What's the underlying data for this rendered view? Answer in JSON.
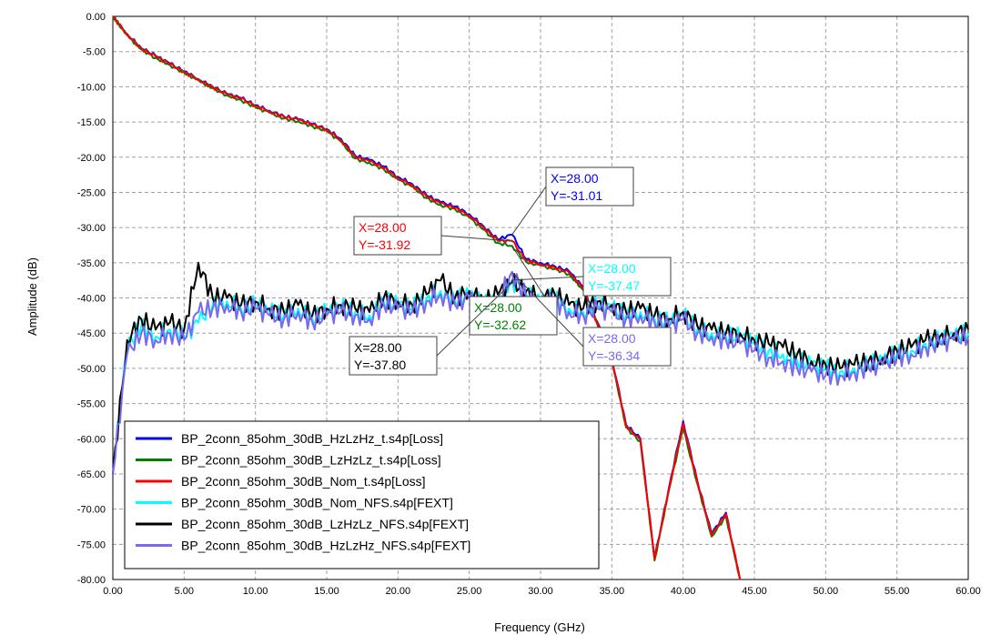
{
  "chart_data": {
    "type": "line",
    "title": "",
    "xlabel": "Frequency (GHz)",
    "ylabel": "Amplitude (dB)",
    "xlim": [
      0,
      60
    ],
    "ylim": [
      -80,
      0
    ],
    "x_ticks": [
      "0.00",
      "5.00",
      "10.00",
      "15.00",
      "20.00",
      "25.00",
      "30.00",
      "35.00",
      "40.00",
      "45.00",
      "50.00",
      "55.00",
      "60.00"
    ],
    "y_ticks": [
      "0.00",
      "-5.00",
      "-10.00",
      "-15.00",
      "-20.00",
      "-25.00",
      "-30.00",
      "-35.00",
      "-40.00",
      "-45.00",
      "-50.00",
      "-55.00",
      "-60.00",
      "-65.00",
      "-70.00",
      "-75.00",
      "-80.00"
    ],
    "grid": true,
    "legend_position": "bottom-left",
    "series": [
      {
        "name": "BP_2conn_85ohm_30dB_HzLzHz_t.s4p[Loss]",
        "color": "#0000ff",
        "x": [
          0,
          1,
          2,
          3,
          4,
          5,
          6,
          7,
          8,
          9,
          10,
          11,
          12,
          13,
          14,
          15,
          16,
          17,
          18,
          19,
          20,
          21,
          22,
          23,
          24,
          25,
          26,
          27,
          28,
          29,
          30,
          31,
          32,
          33,
          34,
          35,
          36,
          37,
          38,
          39,
          40,
          41,
          42,
          43,
          44
        ],
        "y": [
          0,
          -2.5,
          -4.5,
          -5.6,
          -6.7,
          -7.8,
          -8.9,
          -10.0,
          -11.0,
          -11.6,
          -12.6,
          -13.4,
          -14.2,
          -14.6,
          -15.3,
          -16.0,
          -17.4,
          -19.8,
          -20.4,
          -21.3,
          -22.8,
          -23.8,
          -25.4,
          -26.4,
          -27.0,
          -28.1,
          -29.8,
          -31.7,
          -31.0,
          -34.5,
          -35.0,
          -35.5,
          -36.2,
          -38.5,
          -43.5,
          -48.5,
          -58.0,
          -60.0,
          -77.0,
          -67.0,
          -57.5,
          -66.0,
          -73.5,
          -70.5,
          -80.0
        ]
      },
      {
        "name": "BP_2conn_85ohm_30dB_LzHzLz_t.s4p[Loss]",
        "color": "#008000",
        "x": [
          0,
          1,
          2,
          3,
          4,
          5,
          6,
          7,
          8,
          9,
          10,
          11,
          12,
          13,
          14,
          15,
          16,
          17,
          18,
          19,
          20,
          21,
          22,
          23,
          24,
          25,
          26,
          27,
          28,
          29,
          30,
          31,
          32,
          33,
          34,
          35,
          36,
          37,
          38,
          39,
          40,
          41,
          42,
          43,
          44
        ],
        "y": [
          0,
          -2.7,
          -4.7,
          -5.9,
          -6.9,
          -8.0,
          -9.1,
          -10.2,
          -11.2,
          -11.9,
          -12.9,
          -13.7,
          -14.5,
          -14.9,
          -15.6,
          -16.3,
          -17.8,
          -20.2,
          -20.8,
          -21.7,
          -23.2,
          -24.2,
          -25.8,
          -26.8,
          -27.4,
          -28.6,
          -30.3,
          -32.2,
          -32.6,
          -34.9,
          -35.4,
          -35.9,
          -36.6,
          -38.9,
          -43.9,
          -48.9,
          -58.4,
          -60.4,
          -77.3,
          -67.4,
          -58.5,
          -66.4,
          -73.9,
          -71.0,
          -80.0
        ]
      },
      {
        "name": "BP_2conn_85ohm_30dB_Nom_t.s4p[Loss]",
        "color": "#ff0000",
        "x": [
          0,
          1,
          2,
          3,
          4,
          5,
          6,
          7,
          8,
          9,
          10,
          11,
          12,
          13,
          14,
          15,
          16,
          17,
          18,
          19,
          20,
          21,
          22,
          23,
          24,
          25,
          26,
          27,
          28,
          29,
          30,
          31,
          32,
          33,
          34,
          35,
          36,
          37,
          38,
          39,
          40,
          41,
          42,
          43,
          44
        ],
        "y": [
          0,
          -2.6,
          -4.6,
          -5.7,
          -6.8,
          -7.9,
          -9.0,
          -10.1,
          -11.1,
          -11.7,
          -12.7,
          -13.5,
          -14.3,
          -14.7,
          -15.4,
          -16.1,
          -17.6,
          -20.0,
          -20.6,
          -21.5,
          -23.0,
          -24.0,
          -25.6,
          -26.6,
          -27.2,
          -28.3,
          -30.0,
          -31.9,
          -31.9,
          -34.7,
          -35.2,
          -35.7,
          -36.4,
          -38.7,
          -43.7,
          -48.7,
          -58.2,
          -60.2,
          -77.1,
          -67.2,
          -57.8,
          -66.2,
          -73.7,
          -70.7,
          -80.0
        ]
      },
      {
        "name": "BP_2conn_85ohm_30dB_Nom_NFS.s4p[FEXT]",
        "color": "#00ffff",
        "x": [
          0,
          1,
          2,
          3,
          4,
          5,
          6,
          7,
          8,
          9,
          10,
          11,
          12,
          13,
          14,
          15,
          16,
          17,
          18,
          19,
          20,
          21,
          22,
          23,
          24,
          25,
          26,
          27,
          28,
          29,
          30,
          31,
          32,
          33,
          34,
          35,
          36,
          37,
          38,
          39,
          40,
          41,
          42,
          43,
          44,
          45,
          46,
          47,
          48,
          49,
          50,
          51,
          52,
          53,
          54,
          55,
          56,
          57,
          58,
          59,
          60
        ],
        "y": [
          -65.0,
          -47.0,
          -44.0,
          -45.5,
          -44.5,
          -45.5,
          -43.5,
          -41.0,
          -40.5,
          -41.5,
          -41.0,
          -42.0,
          -42.5,
          -41.5,
          -43.0,
          -42.0,
          -41.5,
          -42.0,
          -42.5,
          -40.5,
          -41.0,
          -41.5,
          -40.0,
          -39.0,
          -40.5,
          -39.5,
          -41.0,
          -40.0,
          -37.5,
          -39.5,
          -40.5,
          -40.0,
          -41.5,
          -42.0,
          -41.0,
          -41.5,
          -42.5,
          -42.0,
          -43.0,
          -43.5,
          -42.5,
          -44.5,
          -45.0,
          -45.5,
          -45.5,
          -46.5,
          -47.5,
          -48.0,
          -49.0,
          -49.5,
          -50.0,
          -50.5,
          -50.0,
          -49.5,
          -49.0,
          -48.0,
          -47.5,
          -46.5,
          -46.0,
          -45.5,
          -45.0
        ]
      },
      {
        "name": "BP_2conn_85ohm_30dB_LzHzLz_NFS.s4p[FEXT]",
        "color": "#000000",
        "x": [
          0,
          1,
          2,
          3,
          4,
          5,
          6,
          7,
          8,
          9,
          10,
          11,
          12,
          13,
          14,
          15,
          16,
          17,
          18,
          19,
          20,
          21,
          22,
          23,
          24,
          25,
          26,
          27,
          28,
          29,
          30,
          31,
          32,
          33,
          34,
          35,
          36,
          37,
          38,
          39,
          40,
          41,
          42,
          43,
          44,
          45,
          46,
          47,
          48,
          49,
          50,
          51,
          52,
          53,
          54,
          55,
          56,
          57,
          58,
          59,
          60
        ],
        "y": [
          -65.0,
          -46.0,
          -43.0,
          -44.5,
          -43.5,
          -44.5,
          -35.0,
          -40.0,
          -40.0,
          -41.0,
          -40.5,
          -41.5,
          -42.0,
          -41.0,
          -42.5,
          -41.5,
          -41.0,
          -41.5,
          -42.0,
          -40.0,
          -40.5,
          -41.0,
          -39.5,
          -37.5,
          -40.0,
          -39.0,
          -40.5,
          -39.5,
          -37.8,
          -39.0,
          -40.0,
          -39.5,
          -41.0,
          -41.5,
          -40.5,
          -41.0,
          -42.0,
          -41.5,
          -42.5,
          -43.0,
          -42.0,
          -44.0,
          -44.5,
          -45.0,
          -45.0,
          -46.0,
          -46.5,
          -47.0,
          -48.0,
          -49.0,
          -49.5,
          -50.0,
          -49.5,
          -49.0,
          -48.5,
          -47.5,
          -47.0,
          -46.0,
          -45.5,
          -45.0,
          -44.5
        ]
      },
      {
        "name": "BP_2conn_85ohm_30dB_HzLzHz_NFS.s4p[FEXT]",
        "color": "#7b68ee",
        "x": [
          0,
          1,
          2,
          3,
          4,
          5,
          6,
          7,
          8,
          9,
          10,
          11,
          12,
          13,
          14,
          15,
          16,
          17,
          18,
          19,
          20,
          21,
          22,
          23,
          24,
          25,
          26,
          27,
          28,
          29,
          30,
          31,
          32,
          33,
          34,
          35,
          36,
          37,
          38,
          39,
          40,
          41,
          42,
          43,
          44,
          45,
          46,
          47,
          48,
          49,
          50,
          51,
          52,
          53,
          54,
          55,
          56,
          57,
          58,
          59,
          60
        ],
        "y": [
          -65.0,
          -48.0,
          -45.0,
          -46.0,
          -45.0,
          -46.0,
          -42.0,
          -41.5,
          -41.0,
          -42.0,
          -41.5,
          -42.5,
          -43.0,
          -42.0,
          -43.5,
          -42.5,
          -42.0,
          -42.5,
          -43.0,
          -41.0,
          -41.5,
          -42.0,
          -40.5,
          -39.5,
          -41.0,
          -40.0,
          -41.5,
          -40.5,
          -36.3,
          -40.0,
          -41.0,
          -40.5,
          -42.0,
          -42.5,
          -41.5,
          -42.0,
          -43.0,
          -42.5,
          -43.5,
          -44.0,
          -43.0,
          -45.0,
          -45.5,
          -46.0,
          -46.5,
          -47.5,
          -48.5,
          -49.0,
          -50.0,
          -50.5,
          -51.0,
          -51.0,
          -50.5,
          -50.0,
          -49.5,
          -48.5,
          -48.0,
          -47.0,
          -46.5,
          -46.0,
          -45.5
        ]
      }
    ],
    "annotations": [
      {
        "x_text": "X=28.00",
        "y_text": "Y=-31.01",
        "color": "#0000ff",
        "x": 28,
        "y": -31.01
      },
      {
        "x_text": "X=28.00",
        "y_text": "Y=-31.92",
        "color": "#ff0000",
        "x": 28,
        "y": -31.92
      },
      {
        "x_text": "X=28.00",
        "y_text": "Y=-37.47",
        "color": "#00ffff",
        "x": 28,
        "y": -37.47
      },
      {
        "x_text": "X=28.00",
        "y_text": "Y=-32.62",
        "color": "#008000",
        "x": 28,
        "y": -32.62
      },
      {
        "x_text": "X=28.00",
        "y_text": "Y=-37.80",
        "color": "#000000",
        "x": 28,
        "y": -37.8
      },
      {
        "x_text": "X=28.00",
        "y_text": "Y=-36.34",
        "color": "#7b68ee",
        "x": 28,
        "y": -36.34
      }
    ]
  }
}
